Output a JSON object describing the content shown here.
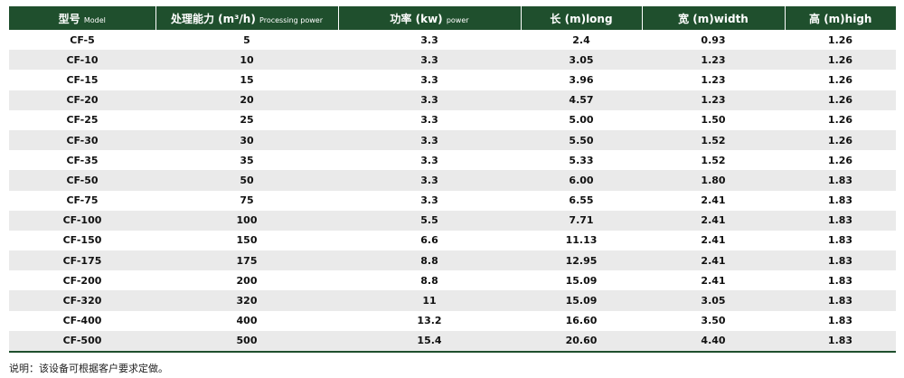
{
  "table": {
    "headers": [
      {
        "main": "型号",
        "sub": "Model"
      },
      {
        "main": "处理能力 (m³/h)",
        "sub": "Processing power"
      },
      {
        "main": "功率 (kw)",
        "sub": "power"
      },
      {
        "main": "长 (m)long",
        "sub": ""
      },
      {
        "main": "宽 (m)width",
        "sub": ""
      },
      {
        "main": "高 (m)high",
        "sub": ""
      }
    ],
    "rows": [
      [
        "CF-5",
        "5",
        "3.3",
        "2.4",
        "0.93",
        "1.26"
      ],
      [
        "CF-10",
        "10",
        "3.3",
        "3.05",
        "1.23",
        "1.26"
      ],
      [
        "CF-15",
        "15",
        "3.3",
        "3.96",
        "1.23",
        "1.26"
      ],
      [
        "CF-20",
        "20",
        "3.3",
        "4.57",
        "1.23",
        "1.26"
      ],
      [
        "CF-25",
        "25",
        "3.3",
        "5.00",
        "1.50",
        "1.26"
      ],
      [
        "CF-30",
        "30",
        "3.3",
        "5.50",
        "1.52",
        "1.26"
      ],
      [
        "CF-35",
        "35",
        "3.3",
        "5.33",
        "1.52",
        "1.26"
      ],
      [
        "CF-50",
        "50",
        "3.3",
        "6.00",
        "1.80",
        "1.83"
      ],
      [
        "CF-75",
        "75",
        "3.3",
        "6.55",
        "2.41",
        "1.83"
      ],
      [
        "CF-100",
        "100",
        "5.5",
        "7.71",
        "2.41",
        "1.83"
      ],
      [
        "CF-150",
        "150",
        "6.6",
        "11.13",
        "2.41",
        "1.83"
      ],
      [
        "CF-175",
        "175",
        "8.8",
        "12.95",
        "2.41",
        "1.83"
      ],
      [
        "CF-200",
        "200",
        "8.8",
        "15.09",
        "2.41",
        "1.83"
      ],
      [
        "CF-320",
        "320",
        "11",
        "15.09",
        "3.05",
        "1.83"
      ],
      [
        "CF-400",
        "400",
        "13.2",
        "16.60",
        "3.50",
        "1.83"
      ],
      [
        "CF-500",
        "500",
        "15.4",
        "20.60",
        "4.40",
        "1.83"
      ]
    ]
  },
  "note": "说明：该设备可根据客户要求定做。",
  "colors": {
    "header_bg": "#1f4f2d",
    "stripe_bg": "#eaeaea"
  }
}
